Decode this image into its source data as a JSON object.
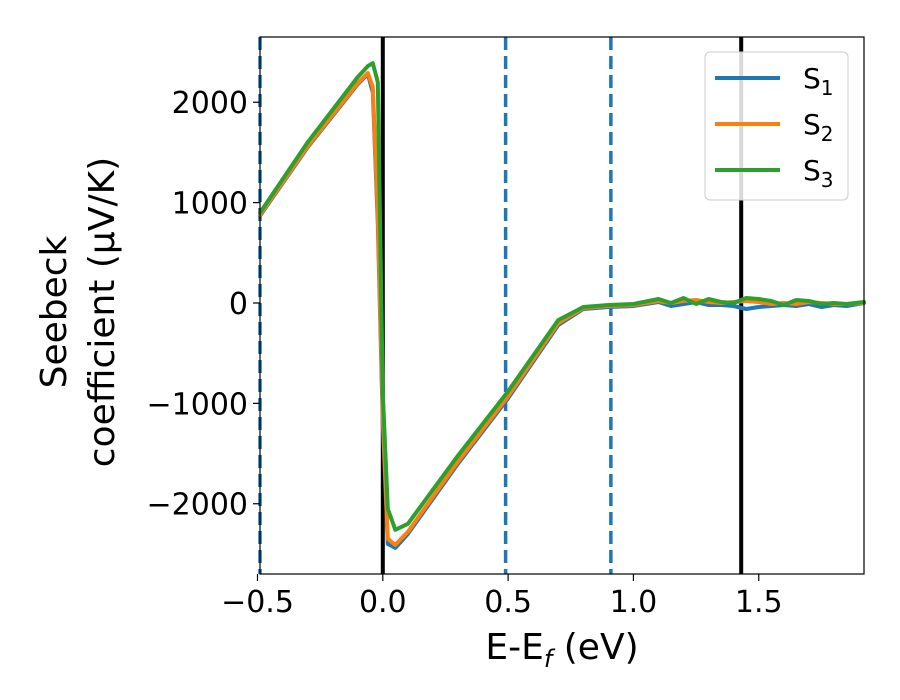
{
  "chart_data": {
    "type": "line",
    "xlabel": {
      "base": "E-E",
      "sub": "f",
      "unit": " (eV)"
    },
    "ylabel": {
      "line1": "Seebeck",
      "line2": "coefficient  (μV/K)"
    },
    "xlim": [
      -0.49,
      1.92
    ],
    "ylim": [
      -2700,
      2650
    ],
    "x_ticks": [
      {
        "value": -0.5,
        "label": "−0.5"
      },
      {
        "value": 0.0,
        "label": "0.0"
      },
      {
        "value": 0.5,
        "label": "0.5"
      },
      {
        "value": 1.0,
        "label": "1.0"
      },
      {
        "value": 1.5,
        "label": "1.5"
      }
    ],
    "y_ticks": [
      {
        "value": 2000,
        "label": "2000"
      },
      {
        "value": 1000,
        "label": "1000"
      },
      {
        "value": 0,
        "label": "0"
      },
      {
        "value": -1000,
        "label": "−1000"
      },
      {
        "value": -2000,
        "label": "−2000"
      }
    ],
    "grid": false,
    "legend_position": "top-right",
    "vertical_lines": [
      {
        "x": -0.49,
        "style": "dashed",
        "color": "#1f77b4"
      },
      {
        "x": 0.0,
        "style": "solid",
        "color": "#000000"
      },
      {
        "x": 0.49,
        "style": "dashed",
        "color": "#1f77b4"
      },
      {
        "x": 0.91,
        "style": "dashed",
        "color": "#1f77b4"
      },
      {
        "x": 1.43,
        "style": "solid",
        "color": "#000000"
      }
    ],
    "series": [
      {
        "name": "S",
        "sub": "1",
        "color": "#1f77b4",
        "x": [
          -0.49,
          -0.3,
          -0.1,
          -0.06,
          -0.04,
          -0.02,
          0.0,
          0.02,
          0.05,
          0.1,
          0.3,
          0.5,
          0.7,
          0.8,
          0.9,
          1.0,
          1.1,
          1.15,
          1.2,
          1.25,
          1.3,
          1.35,
          1.4,
          1.45,
          1.5,
          1.55,
          1.6,
          1.65,
          1.7,
          1.75,
          1.8,
          1.85,
          1.92
        ],
        "y": [
          870,
          1550,
          2180,
          2280,
          2100,
          800,
          -1200,
          -2400,
          -2440,
          -2300,
          -1600,
          -950,
          -220,
          -60,
          -40,
          -30,
          10,
          -30,
          -10,
          10,
          -20,
          -20,
          -30,
          -60,
          -40,
          -30,
          -20,
          -30,
          -10,
          -40,
          -20,
          -30,
          0
        ]
      },
      {
        "name": "S",
        "sub": "2",
        "color": "#ff7f0e",
        "x": [
          -0.49,
          -0.3,
          -0.1,
          -0.06,
          -0.04,
          -0.02,
          0.0,
          0.02,
          0.05,
          0.1,
          0.3,
          0.5,
          0.7,
          0.8,
          0.9,
          1.0,
          1.1,
          1.15,
          1.2,
          1.25,
          1.3,
          1.35,
          1.4,
          1.45,
          1.5,
          1.55,
          1.6,
          1.65,
          1.7,
          1.75,
          1.8,
          1.85,
          1.92
        ],
        "y": [
          880,
          1560,
          2190,
          2290,
          2150,
          900,
          -1100,
          -2350,
          -2410,
          -2280,
          -1580,
          -930,
          -200,
          -50,
          -30,
          -20,
          20,
          0,
          20,
          30,
          10,
          0,
          10,
          20,
          10,
          -10,
          0,
          -10,
          10,
          0,
          -10,
          -10,
          0
        ]
      },
      {
        "name": "S",
        "sub": "3",
        "color": "#2ca02c",
        "x": [
          -0.49,
          -0.3,
          -0.1,
          -0.06,
          -0.04,
          -0.02,
          0.0,
          0.02,
          0.05,
          0.1,
          0.3,
          0.5,
          0.7,
          0.8,
          0.9,
          1.0,
          1.1,
          1.15,
          1.2,
          1.25,
          1.3,
          1.35,
          1.4,
          1.45,
          1.5,
          1.55,
          1.6,
          1.65,
          1.7,
          1.75,
          1.8,
          1.85,
          1.92
        ],
        "y": [
          900,
          1600,
          2250,
          2360,
          2390,
          2200,
          -900,
          -2050,
          -2260,
          -2200,
          -1520,
          -880,
          -170,
          -40,
          -20,
          -10,
          40,
          0,
          50,
          -10,
          40,
          10,
          0,
          50,
          40,
          20,
          -20,
          30,
          20,
          -10,
          0,
          -10,
          10
        ]
      }
    ]
  }
}
